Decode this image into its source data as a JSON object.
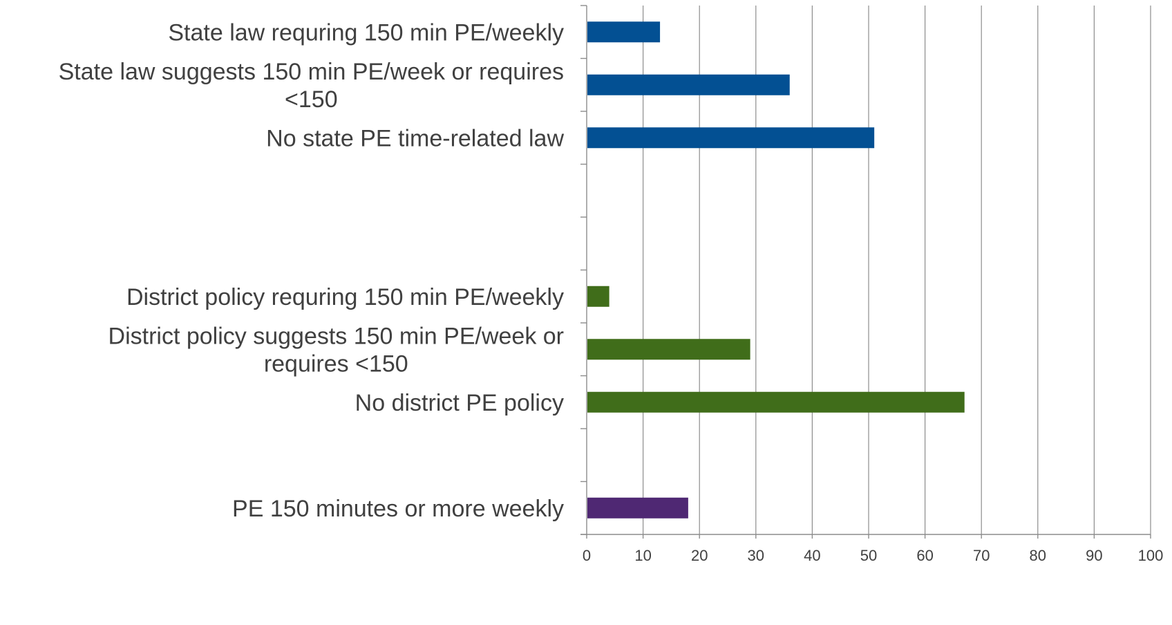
{
  "chart_data": {
    "type": "bar",
    "orientation": "horizontal",
    "title": "",
    "xlabel": "",
    "ylabel": "",
    "xlim": [
      0,
      100
    ],
    "x_ticks": [
      0,
      10,
      20,
      30,
      40,
      50,
      60,
      70,
      80,
      90,
      100
    ],
    "grid": true,
    "legend": "none",
    "slots": 10,
    "categories": [
      {
        "slot": 0,
        "lines": [
          "State law requring 150 min PE/weekly"
        ],
        "value": 13,
        "color": "#035093"
      },
      {
        "slot": 1,
        "lines": [
          "State law suggests 150 min PE/week or requires",
          "<150"
        ],
        "value": 36,
        "color": "#035093"
      },
      {
        "slot": 2,
        "lines": [
          "No state PE time-related law"
        ],
        "value": 51,
        "color": "#035093"
      },
      {
        "slot": 5,
        "lines": [
          "District policy requring 150 min PE/weekly"
        ],
        "value": 4,
        "color": "#406d1a"
      },
      {
        "slot": 6,
        "lines": [
          "District policy suggests 150 min PE/week or",
          "requires <150"
        ],
        "value": 29,
        "color": "#406d1a"
      },
      {
        "slot": 7,
        "lines": [
          "No district PE policy"
        ],
        "value": 67,
        "color": "#406d1a"
      },
      {
        "slot": 9,
        "lines": [
          "PE 150 minutes or more weekly"
        ],
        "value": 18,
        "color": "#4f2873"
      }
    ]
  }
}
